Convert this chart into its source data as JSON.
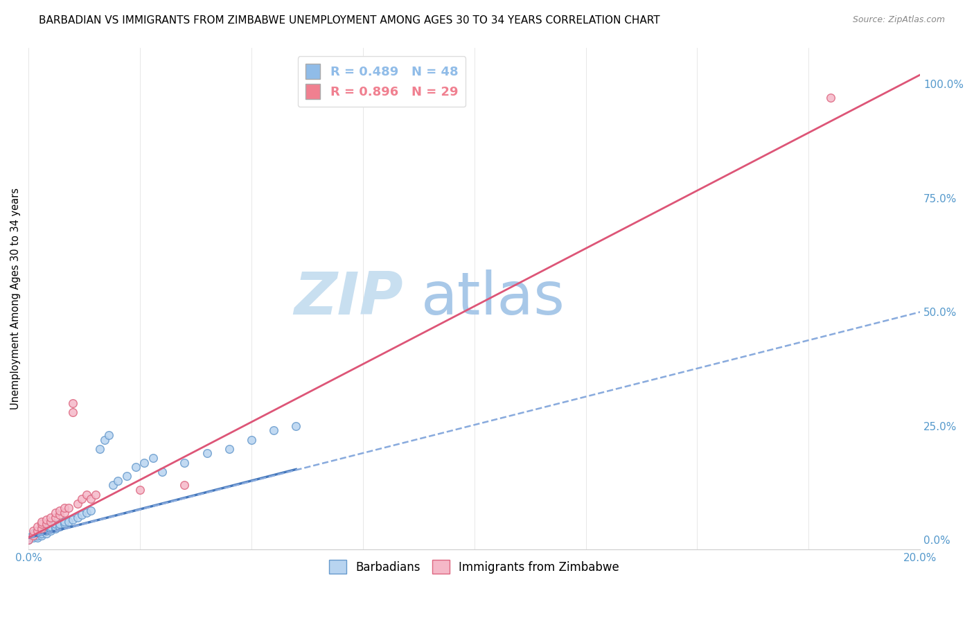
{
  "title": "BARBADIAN VS IMMIGRANTS FROM ZIMBABWE UNEMPLOYMENT AMONG AGES 30 TO 34 YEARS CORRELATION CHART",
  "source": "Source: ZipAtlas.com",
  "ylabel": "Unemployment Among Ages 30 to 34 years",
  "right_yticks": [
    0.0,
    0.25,
    0.5,
    0.75,
    1.0
  ],
  "right_yticklabels": [
    "0.0%",
    "25.0%",
    "50.0%",
    "75.0%",
    "100.0%"
  ],
  "xlim": [
    0.0,
    0.2
  ],
  "ylim": [
    -0.02,
    1.08
  ],
  "legend_entries": [
    {
      "label": "R = 0.489   N = 48",
      "color": "#90bce8"
    },
    {
      "label": "R = 0.896   N = 29",
      "color": "#f08090"
    }
  ],
  "barbadian_scatter": {
    "x": [
      0.0,
      0.0,
      0.001,
      0.001,
      0.001,
      0.002,
      0.002,
      0.002,
      0.003,
      0.003,
      0.003,
      0.003,
      0.004,
      0.004,
      0.004,
      0.004,
      0.005,
      0.005,
      0.005,
      0.006,
      0.006,
      0.006,
      0.007,
      0.007,
      0.008,
      0.008,
      0.009,
      0.01,
      0.011,
      0.012,
      0.013,
      0.014,
      0.016,
      0.017,
      0.018,
      0.019,
      0.02,
      0.022,
      0.024,
      0.026,
      0.028,
      0.03,
      0.035,
      0.04,
      0.045,
      0.05,
      0.055,
      0.06
    ],
    "y": [
      0.0,
      0.005,
      0.005,
      0.01,
      0.015,
      0.005,
      0.01,
      0.02,
      0.01,
      0.015,
      0.02,
      0.025,
      0.015,
      0.02,
      0.025,
      0.03,
      0.02,
      0.025,
      0.03,
      0.025,
      0.03,
      0.035,
      0.03,
      0.035,
      0.035,
      0.04,
      0.04,
      0.045,
      0.05,
      0.055,
      0.06,
      0.065,
      0.2,
      0.22,
      0.23,
      0.12,
      0.13,
      0.14,
      0.16,
      0.17,
      0.18,
      0.15,
      0.17,
      0.19,
      0.2,
      0.22,
      0.24,
      0.25
    ],
    "color": "#b8d4f0",
    "edgecolor": "#6699cc",
    "size": 70
  },
  "zimbabwe_scatter": {
    "x": [
      0.0,
      0.001,
      0.001,
      0.002,
      0.002,
      0.003,
      0.003,
      0.003,
      0.004,
      0.004,
      0.005,
      0.005,
      0.006,
      0.006,
      0.007,
      0.007,
      0.008,
      0.008,
      0.009,
      0.01,
      0.01,
      0.011,
      0.012,
      0.013,
      0.014,
      0.015,
      0.025,
      0.035,
      0.18
    ],
    "y": [
      0.0,
      0.01,
      0.02,
      0.02,
      0.03,
      0.025,
      0.035,
      0.04,
      0.035,
      0.045,
      0.04,
      0.05,
      0.05,
      0.06,
      0.055,
      0.065,
      0.06,
      0.07,
      0.07,
      0.28,
      0.3,
      0.08,
      0.09,
      0.1,
      0.09,
      0.1,
      0.11,
      0.12,
      0.97
    ],
    "color": "#f5b8c8",
    "edgecolor": "#dd6680",
    "size": 70
  },
  "barbadian_line": {
    "x": [
      0.0,
      0.06
    ],
    "y": [
      0.005,
      0.155
    ],
    "color": "#4477bb",
    "linestyle": "-",
    "linewidth": 2.5
  },
  "barbadian_dashed_line": {
    "x": [
      0.0,
      0.2
    ],
    "y": [
      0.005,
      0.5
    ],
    "color": "#88aadd",
    "linestyle": "--",
    "linewidth": 1.8
  },
  "zimbabwe_line": {
    "x": [
      0.0,
      0.2
    ],
    "y": [
      0.005,
      1.02
    ],
    "color": "#dd5577",
    "linestyle": "-",
    "linewidth": 2.0
  },
  "watermark_zip": "ZIP",
  "watermark_atlas": "atlas",
  "watermark_zip_color": "#c8dff0",
  "watermark_atlas_color": "#a8c8e8",
  "background_color": "#ffffff",
  "grid_color": "#dddddd",
  "title_fontsize": 11,
  "axis_color": "#5599cc",
  "tick_color": "#5599cc"
}
